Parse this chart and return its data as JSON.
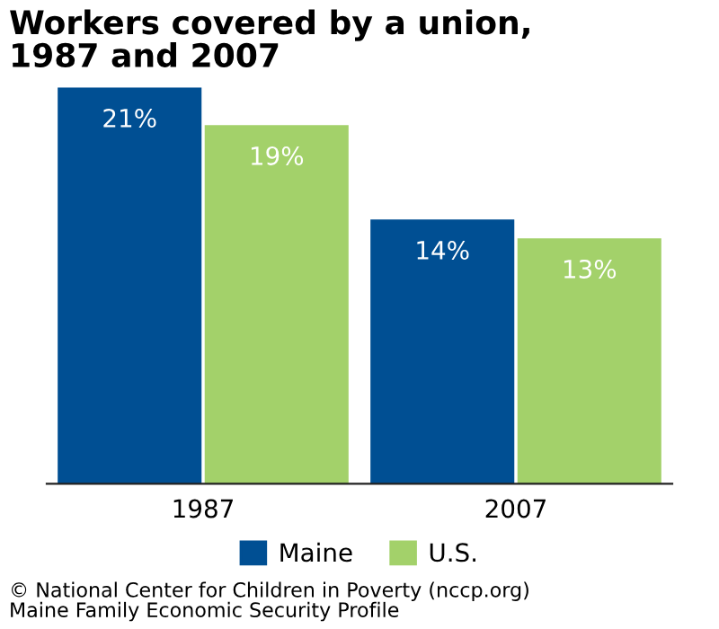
{
  "chart_data": {
    "type": "bar",
    "title": "Workers covered by a union,\n1987 and 2007",
    "categories": [
      "1987",
      "2007"
    ],
    "series": [
      {
        "name": "Maine",
        "color": "#004f93",
        "values": [
          21,
          14
        ],
        "value_labels": [
          "21%",
          "14%"
        ]
      },
      {
        "name": "U.S.",
        "color": "#a3d16a",
        "values": [
          19,
          13
        ],
        "value_labels": [
          "19%",
          "13%"
        ]
      }
    ],
    "legend": "bottom",
    "grid": false,
    "annotations": [
      "© National Center for Children in Poverty (nccp.org)\nMaine Family Economic Security Profile"
    ]
  }
}
